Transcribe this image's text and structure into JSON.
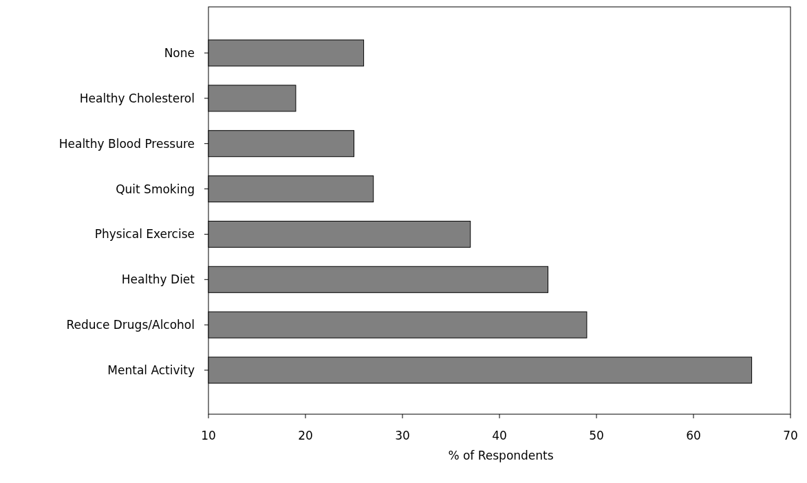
{
  "chart_data": {
    "type": "bar",
    "orientation": "horizontal",
    "xlabel": "% of Respondents",
    "categories": [
      "None",
      "Healthy Cholesterol",
      "Healthy Blood Pressure",
      "Quit Smoking",
      "Physical Exercise",
      "Healthy Diet",
      "Reduce Drugs/Alcohol",
      "Mental Activity"
    ],
    "values": [
      26,
      19,
      25,
      27,
      37,
      45,
      49,
      66
    ],
    "color": "#808080",
    "xlim": [
      10,
      70
    ],
    "xticks": [
      10,
      20,
      30,
      40,
      50,
      60,
      70
    ],
    "grid": false
  }
}
